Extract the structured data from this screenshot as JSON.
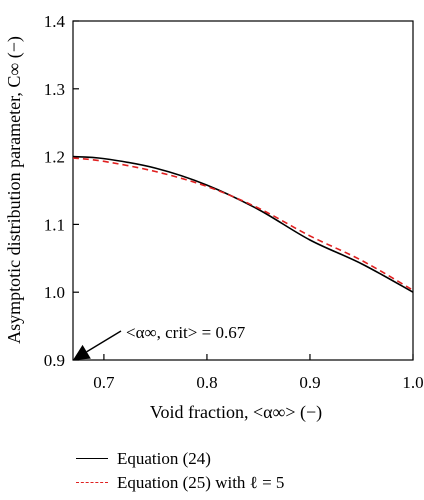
{
  "chart_data": {
    "type": "line",
    "xlabel": "Void fraction, <α∞> (−)",
    "ylabel": "Asymptotic distribution parameter, C∞ (−)",
    "xlim": [
      0.67,
      1.0
    ],
    "ylim": [
      0.9,
      1.4
    ],
    "xticks": [
      0.7,
      0.8,
      0.9,
      1.0
    ],
    "xtick_labels": [
      "0.7",
      "0.8",
      "0.9",
      "1.0"
    ],
    "yticks": [
      0.9,
      1.0,
      1.1,
      1.2,
      1.3,
      1.4
    ],
    "ytick_labels": [
      "0.9",
      "1.0",
      "1.1",
      "1.2",
      "1.3",
      "1.4"
    ],
    "grid": false,
    "legend_position": "bottom",
    "series": [
      {
        "name": "Equation (24)",
        "color": "#000000",
        "style": "solid",
        "x": [
          0.67,
          0.7,
          0.75,
          0.8,
          0.85,
          0.9,
          0.95,
          1.0
        ],
        "y": [
          1.2,
          1.197,
          1.183,
          1.158,
          1.122,
          1.077,
          1.042,
          1.0
        ]
      },
      {
        "name": "Equation (25) with ℓ = 5",
        "color": "#e02020",
        "style": "dashed",
        "x": [
          0.67,
          0.7,
          0.75,
          0.8,
          0.85,
          0.9,
          0.95,
          1.0
        ],
        "y": [
          1.198,
          1.193,
          1.178,
          1.156,
          1.124,
          1.083,
          1.047,
          1.003
        ]
      }
    ],
    "annotation": {
      "text": "<α∞, crit> = 0.67",
      "x": 0.67,
      "y": 0.9
    }
  }
}
